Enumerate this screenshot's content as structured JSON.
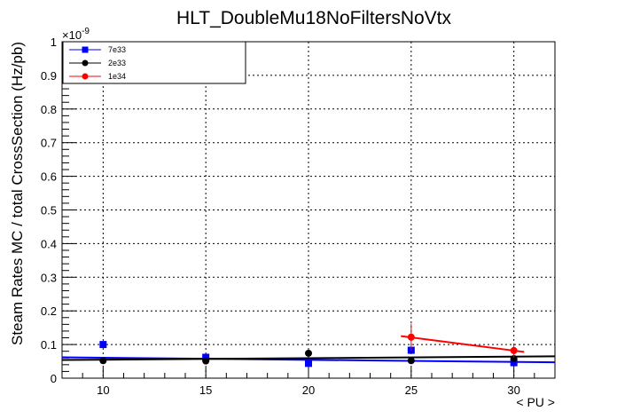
{
  "chart_data": {
    "type": "scatter",
    "title": "HLT_DoubleMu18NoFiltersNoVtx",
    "xlabel": "< PU >",
    "ylabel": "Steam Rates MC / total CrossSection (Hz/pb)",
    "y_exponent_label": "×10",
    "y_exponent_power": "-9",
    "xlim": [
      8,
      32
    ],
    "ylim": [
      0,
      1
    ],
    "x_ticks": [
      10,
      15,
      20,
      25,
      30
    ],
    "x_tick_labels": [
      "10",
      "15",
      "20",
      "25",
      "30"
    ],
    "y_ticks": [
      0,
      0.1,
      0.2,
      0.3,
      0.4,
      0.5,
      0.6,
      0.7,
      0.8,
      0.9,
      1
    ],
    "y_tick_labels": [
      "0",
      "0.1",
      "0.2",
      "0.3",
      "0.4",
      "0.5",
      "0.6",
      "0.7",
      "0.8",
      "0.9",
      "1"
    ],
    "grid": true,
    "legend_position": "top-left",
    "series": [
      {
        "name": "7e33",
        "color": "#0000ff",
        "marker": "square",
        "points": [
          {
            "x": 10,
            "y": 0.1,
            "err": 0.004
          },
          {
            "x": 15,
            "y": 0.062,
            "err": 0.003
          },
          {
            "x": 20,
            "y": 0.044,
            "err": 0.003
          },
          {
            "x": 25,
            "y": 0.083,
            "err": 0.004
          },
          {
            "x": 30,
            "y": 0.046,
            "err": 0.003
          }
        ],
        "fit": {
          "x": [
            8,
            32
          ],
          "y": [
            0.062,
            0.047
          ]
        }
      },
      {
        "name": "2e33",
        "color": "#000000",
        "marker": "circle",
        "points": [
          {
            "x": 10,
            "y": 0.052,
            "err": 0.003
          },
          {
            "x": 15,
            "y": 0.051,
            "err": 0.003
          },
          {
            "x": 20,
            "y": 0.074,
            "err": 0.004
          },
          {
            "x": 25,
            "y": 0.052,
            "err": 0.003
          },
          {
            "x": 30,
            "y": 0.058,
            "err": 0.004
          }
        ],
        "fit": {
          "x": [
            8,
            32
          ],
          "y": [
            0.054,
            0.065
          ]
        }
      },
      {
        "name": "1e34",
        "color": "#ff0000",
        "marker": "circle",
        "points": [
          {
            "x": 25,
            "y": 0.122,
            "err": 0.04
          },
          {
            "x": 30,
            "y": 0.082,
            "err": 0.02
          }
        ],
        "fit": {
          "x": [
            24.5,
            30.5
          ],
          "y": [
            0.125,
            0.078
          ]
        }
      }
    ]
  }
}
